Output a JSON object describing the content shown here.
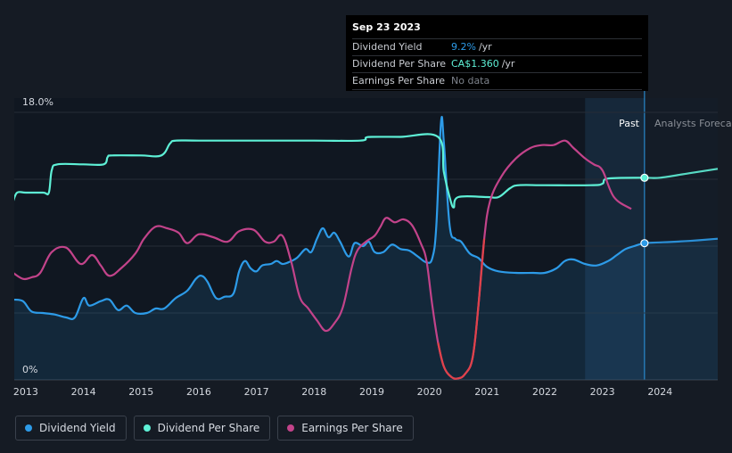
{
  "chart_data": {
    "type": "line",
    "y_unit": "%",
    "ylim": [
      0,
      18
    ],
    "y_tick_labels": [
      "18.0%",
      "0%"
    ],
    "x_ticks": [
      2013,
      2014,
      2015,
      2016,
      2017,
      2018,
      2019,
      2020,
      2021,
      2022,
      2023,
      2024
    ],
    "x_tick_labels": [
      "2013",
      "2014",
      "2015",
      "2016",
      "2017",
      "2018",
      "2019",
      "2020",
      "2021",
      "2022",
      "2023",
      "2024"
    ],
    "xlim": [
      2012.8,
      2025.0
    ],
    "regions": {
      "past_label": "Past",
      "forecast_label": "Analysts Forecasts",
      "past_band_start": 2022.7,
      "current": 2023.73
    },
    "grid": true,
    "series": [
      {
        "name": "Dividend Yield",
        "color": "#2d9be8",
        "filled": true,
        "points": [
          [
            2012.78,
            5.4
          ],
          [
            2012.95,
            5.3
          ],
          [
            2013.1,
            4.6
          ],
          [
            2013.3,
            4.5
          ],
          [
            2013.5,
            4.4
          ],
          [
            2013.7,
            4.2
          ],
          [
            2013.85,
            4.2
          ],
          [
            2014.0,
            5.5
          ],
          [
            2014.1,
            5.0
          ],
          [
            2014.3,
            5.3
          ],
          [
            2014.45,
            5.4
          ],
          [
            2014.6,
            4.7
          ],
          [
            2014.75,
            5.0
          ],
          [
            2014.9,
            4.5
          ],
          [
            2015.1,
            4.5
          ],
          [
            2015.25,
            4.8
          ],
          [
            2015.4,
            4.8
          ],
          [
            2015.6,
            5.5
          ],
          [
            2015.8,
            6.0
          ],
          [
            2015.95,
            6.8
          ],
          [
            2016.05,
            7.0
          ],
          [
            2016.15,
            6.6
          ],
          [
            2016.3,
            5.5
          ],
          [
            2016.45,
            5.6
          ],
          [
            2016.6,
            5.8
          ],
          [
            2016.7,
            7.3
          ],
          [
            2016.8,
            8.0
          ],
          [
            2016.9,
            7.5
          ],
          [
            2017.0,
            7.3
          ],
          [
            2017.1,
            7.7
          ],
          [
            2017.25,
            7.8
          ],
          [
            2017.35,
            8.0
          ],
          [
            2017.45,
            7.8
          ],
          [
            2017.55,
            7.9
          ],
          [
            2017.7,
            8.2
          ],
          [
            2017.85,
            8.8
          ],
          [
            2017.95,
            8.6
          ],
          [
            2018.05,
            9.5
          ],
          [
            2018.15,
            10.2
          ],
          [
            2018.25,
            9.6
          ],
          [
            2018.35,
            9.9
          ],
          [
            2018.45,
            9.3
          ],
          [
            2018.6,
            8.3
          ],
          [
            2018.7,
            9.2
          ],
          [
            2018.85,
            9.0
          ],
          [
            2018.95,
            9.3
          ],
          [
            2019.05,
            8.6
          ],
          [
            2019.2,
            8.6
          ],
          [
            2019.35,
            9.1
          ],
          [
            2019.5,
            8.8
          ],
          [
            2019.65,
            8.7
          ],
          [
            2019.8,
            8.3
          ],
          [
            2019.95,
            7.9
          ],
          [
            2020.05,
            8.2
          ],
          [
            2020.12,
            10.4
          ],
          [
            2020.2,
            17.3
          ],
          [
            2020.25,
            16.0
          ],
          [
            2020.35,
            10.4
          ],
          [
            2020.45,
            9.5
          ],
          [
            2020.55,
            9.3
          ],
          [
            2020.7,
            8.5
          ],
          [
            2020.85,
            8.2
          ],
          [
            2021.0,
            7.6
          ],
          [
            2021.2,
            7.3
          ],
          [
            2021.5,
            7.2
          ],
          [
            2021.8,
            7.2
          ],
          [
            2022.0,
            7.2
          ],
          [
            2022.2,
            7.5
          ],
          [
            2022.35,
            8.0
          ],
          [
            2022.5,
            8.1
          ],
          [
            2022.7,
            7.8
          ],
          [
            2022.9,
            7.7
          ],
          [
            2023.1,
            8.0
          ],
          [
            2023.25,
            8.4
          ],
          [
            2023.4,
            8.8
          ],
          [
            2023.55,
            9.0
          ],
          [
            2023.73,
            9.2
          ],
          [
            2024.0,
            9.25
          ],
          [
            2024.5,
            9.35
          ],
          [
            2025.0,
            9.5
          ]
        ]
      },
      {
        "name": "Dividend Per Share",
        "color": "#5ef0d6",
        "filled": false,
        "points": [
          [
            2012.78,
            12.0
          ],
          [
            2012.85,
            12.6
          ],
          [
            2013.0,
            12.6
          ],
          [
            2013.3,
            12.6
          ],
          [
            2013.4,
            12.6
          ],
          [
            2013.45,
            14.1
          ],
          [
            2013.55,
            14.5
          ],
          [
            2014.0,
            14.5
          ],
          [
            2014.35,
            14.5
          ],
          [
            2014.42,
            15.0
          ],
          [
            2014.5,
            15.1
          ],
          [
            2015.0,
            15.1
          ],
          [
            2015.35,
            15.1
          ],
          [
            2015.5,
            15.9
          ],
          [
            2015.6,
            16.1
          ],
          [
            2016.0,
            16.1
          ],
          [
            2017.0,
            16.1
          ],
          [
            2018.0,
            16.1
          ],
          [
            2018.8,
            16.1
          ],
          [
            2018.9,
            16.3
          ],
          [
            2019.0,
            16.35
          ],
          [
            2019.5,
            16.35
          ],
          [
            2020.15,
            16.35
          ],
          [
            2020.25,
            14.0
          ],
          [
            2020.35,
            12.3
          ],
          [
            2020.42,
            11.6
          ],
          [
            2020.5,
            12.3
          ],
          [
            2021.0,
            12.3
          ],
          [
            2021.2,
            12.3
          ],
          [
            2021.4,
            12.9
          ],
          [
            2021.55,
            13.1
          ],
          [
            2022.0,
            13.1
          ],
          [
            2022.8,
            13.1
          ],
          [
            2023.0,
            13.2
          ],
          [
            2023.1,
            13.55
          ],
          [
            2023.73,
            13.6
          ],
          [
            2024.0,
            13.6
          ],
          [
            2024.5,
            13.9
          ],
          [
            2025.0,
            14.2
          ]
        ]
      },
      {
        "name": "Earnings Per Share",
        "color": "#c2438a",
        "filled": false,
        "points": [
          [
            2012.78,
            7.2
          ],
          [
            2012.95,
            6.8
          ],
          [
            2013.1,
            6.9
          ],
          [
            2013.25,
            7.2
          ],
          [
            2013.45,
            8.6
          ],
          [
            2013.7,
            8.9
          ],
          [
            2013.95,
            7.8
          ],
          [
            2014.15,
            8.4
          ],
          [
            2014.3,
            7.7
          ],
          [
            2014.45,
            7.0
          ],
          [
            2014.65,
            7.5
          ],
          [
            2014.9,
            8.5
          ],
          [
            2015.05,
            9.5
          ],
          [
            2015.25,
            10.3
          ],
          [
            2015.45,
            10.2
          ],
          [
            2015.65,
            9.9
          ],
          [
            2015.8,
            9.2
          ],
          [
            2016.0,
            9.8
          ],
          [
            2016.25,
            9.6
          ],
          [
            2016.5,
            9.3
          ],
          [
            2016.7,
            10.0
          ],
          [
            2016.95,
            10.1
          ],
          [
            2017.15,
            9.3
          ],
          [
            2017.3,
            9.3
          ],
          [
            2017.45,
            9.7
          ],
          [
            2017.6,
            8.0
          ],
          [
            2017.75,
            5.6
          ],
          [
            2017.9,
            4.8
          ],
          [
            2018.05,
            4.0
          ],
          [
            2018.2,
            3.3
          ],
          [
            2018.35,
            3.8
          ],
          [
            2018.5,
            4.9
          ],
          [
            2018.65,
            7.5
          ],
          [
            2018.75,
            8.7
          ],
          [
            2018.9,
            9.3
          ],
          [
            2019.05,
            9.7
          ],
          [
            2019.15,
            10.3
          ],
          [
            2019.25,
            10.9
          ],
          [
            2019.4,
            10.6
          ],
          [
            2019.55,
            10.8
          ],
          [
            2019.7,
            10.4
          ],
          [
            2019.85,
            9.2
          ],
          [
            2019.95,
            8.0
          ],
          [
            2020.05,
            5.0
          ],
          [
            2020.15,
            2.5
          ],
          [
            2020.25,
            0.9
          ],
          [
            2020.38,
            0.2
          ],
          [
            2020.5,
            0.1
          ],
          [
            2020.62,
            0.4
          ],
          [
            2020.75,
            1.5
          ],
          [
            2020.85,
            5.0
          ],
          [
            2020.95,
            9.5
          ],
          [
            2021.05,
            12.0
          ],
          [
            2021.25,
            13.7
          ],
          [
            2021.5,
            14.9
          ],
          [
            2021.75,
            15.6
          ],
          [
            2021.95,
            15.8
          ],
          [
            2022.15,
            15.8
          ],
          [
            2022.35,
            16.1
          ],
          [
            2022.5,
            15.6
          ],
          [
            2022.7,
            14.9
          ],
          [
            2022.85,
            14.5
          ],
          [
            2023.0,
            14.1
          ],
          [
            2023.2,
            12.3
          ],
          [
            2023.5,
            11.5
          ]
        ]
      }
    ],
    "markers": [
      {
        "series": "Dividend Per Share",
        "x": 2023.73,
        "y": 13.6
      },
      {
        "series": "Dividend Yield",
        "x": 2023.73,
        "y": 9.2
      }
    ]
  },
  "tooltip": {
    "date": "Sep 23 2023",
    "rows": [
      {
        "label": "Dividend Yield",
        "value": "9.2%",
        "unit": "/yr"
      },
      {
        "label": "Dividend Per Share",
        "value": "CA$1.360",
        "unit": "/yr"
      },
      {
        "label": "Earnings Per Share",
        "value": "No data",
        "unit": ""
      }
    ]
  },
  "legend": [
    {
      "label": "Dividend Yield",
      "color": "#2d9be8"
    },
    {
      "label": "Dividend Per Share",
      "color": "#5ef0d6"
    },
    {
      "label": "Earnings Per Share",
      "color": "#c2438a"
    }
  ]
}
